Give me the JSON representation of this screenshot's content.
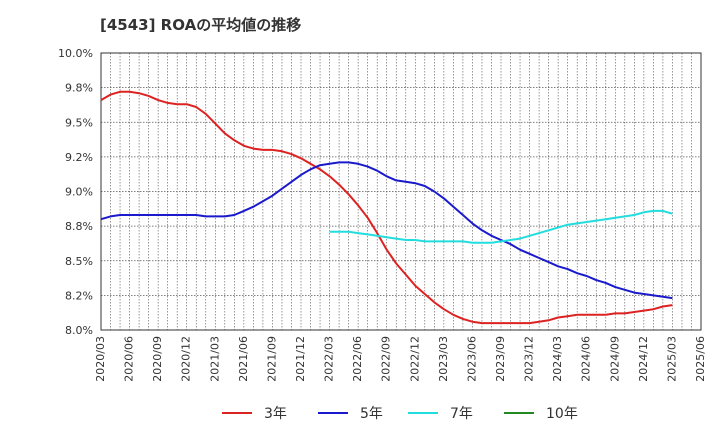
{
  "chart_data": {
    "type": "line",
    "title": "[4543]  ROAの平均値の推移",
    "xlabel": "",
    "ylabel": "",
    "ylim": [
      8.0,
      10.0
    ],
    "y_ticks": [
      "8.0%",
      "8.2%",
      "8.5%",
      "8.8%",
      "9.0%",
      "9.2%",
      "9.5%",
      "9.8%",
      "10.0%"
    ],
    "y_tick_values": [
      8.0,
      8.25,
      8.5,
      8.75,
      9.0,
      9.25,
      9.5,
      9.75,
      10.0
    ],
    "x_ticks": [
      "2020/03",
      "2020/06",
      "2020/09",
      "2020/12",
      "2021/03",
      "2021/06",
      "2021/09",
      "2021/12",
      "2022/03",
      "2022/06",
      "2022/09",
      "2022/12",
      "2023/03",
      "2023/06",
      "2023/09",
      "2023/12",
      "2024/03",
      "2024/06",
      "2024/09",
      "2024/12",
      "2025/03",
      "2025/06"
    ],
    "grid": true,
    "legend_position": "bottom",
    "series": [
      {
        "name": "3年",
        "color": "#dd2222",
        "x": [
          "2020/03",
          "2020/04",
          "2020/05",
          "2020/06",
          "2020/07",
          "2020/08",
          "2020/09",
          "2020/10",
          "2020/11",
          "2020/12",
          "2021/01",
          "2021/02",
          "2021/03",
          "2021/04",
          "2021/05",
          "2021/06",
          "2021/07",
          "2021/08",
          "2021/09",
          "2021/10",
          "2021/11",
          "2021/12",
          "2022/01",
          "2022/02",
          "2022/03",
          "2022/04",
          "2022/05",
          "2022/06",
          "2022/07",
          "2022/08",
          "2022/09",
          "2022/10",
          "2022/11",
          "2022/12",
          "2023/01",
          "2023/02",
          "2023/03",
          "2023/04",
          "2023/05",
          "2023/06",
          "2023/07",
          "2023/08",
          "2023/09",
          "2023/10",
          "2023/11",
          "2023/12",
          "2024/01",
          "2024/02",
          "2024/03",
          "2024/04",
          "2024/05",
          "2024/06",
          "2024/07",
          "2024/08",
          "2024/09",
          "2024/10",
          "2024/11",
          "2024/12",
          "2025/01",
          "2025/02",
          "2025/03"
        ],
        "values": [
          9.66,
          9.7,
          9.72,
          9.72,
          9.71,
          9.69,
          9.66,
          9.64,
          9.63,
          9.63,
          9.61,
          9.56,
          9.49,
          9.42,
          9.37,
          9.33,
          9.31,
          9.3,
          9.3,
          9.29,
          9.27,
          9.24,
          9.2,
          9.16,
          9.11,
          9.05,
          8.98,
          8.9,
          8.81,
          8.7,
          8.58,
          8.48,
          8.4,
          8.32,
          8.26,
          8.2,
          8.15,
          8.11,
          8.08,
          8.06,
          8.05,
          8.05,
          8.05,
          8.05,
          8.05,
          8.05,
          8.06,
          8.07,
          8.09,
          8.1,
          8.11,
          8.11,
          8.11,
          8.11,
          8.12,
          8.12,
          8.13,
          8.14,
          8.15,
          8.17,
          8.18
        ]
      },
      {
        "name": "5年",
        "color": "#1a1acc",
        "x": [
          "2020/03",
          "2020/04",
          "2020/05",
          "2020/06",
          "2020/07",
          "2020/08",
          "2020/09",
          "2020/10",
          "2020/11",
          "2020/12",
          "2021/01",
          "2021/02",
          "2021/03",
          "2021/04",
          "2021/05",
          "2021/06",
          "2021/07",
          "2021/08",
          "2021/09",
          "2021/10",
          "2021/11",
          "2021/12",
          "2022/01",
          "2022/02",
          "2022/03",
          "2022/04",
          "2022/05",
          "2022/06",
          "2022/07",
          "2022/08",
          "2022/09",
          "2022/10",
          "2022/11",
          "2022/12",
          "2023/01",
          "2023/02",
          "2023/03",
          "2023/04",
          "2023/05",
          "2023/06",
          "2023/07",
          "2023/08",
          "2023/09",
          "2023/10",
          "2023/11",
          "2023/12",
          "2024/01",
          "2024/02",
          "2024/03",
          "2024/04",
          "2024/05",
          "2024/06",
          "2024/07",
          "2024/08",
          "2024/09",
          "2024/10",
          "2024/11",
          "2024/12",
          "2025/01",
          "2025/02",
          "2025/03"
        ],
        "values": [
          8.8,
          8.82,
          8.83,
          8.83,
          8.83,
          8.83,
          8.83,
          8.83,
          8.83,
          8.83,
          8.83,
          8.82,
          8.82,
          8.82,
          8.83,
          8.86,
          8.89,
          8.93,
          8.97,
          9.02,
          9.07,
          9.12,
          9.16,
          9.19,
          9.2,
          9.21,
          9.21,
          9.2,
          9.18,
          9.15,
          9.11,
          9.08,
          9.07,
          9.06,
          9.04,
          9.0,
          8.95,
          8.89,
          8.83,
          8.77,
          8.72,
          8.68,
          8.65,
          8.62,
          8.58,
          8.55,
          8.52,
          8.49,
          8.46,
          8.44,
          8.41,
          8.39,
          8.36,
          8.34,
          8.31,
          8.29,
          8.27,
          8.26,
          8.25,
          8.24,
          8.23
        ]
      },
      {
        "name": "7年",
        "color": "#22dddd",
        "x": [
          "2022/03",
          "2022/04",
          "2022/05",
          "2022/06",
          "2022/07",
          "2022/08",
          "2022/09",
          "2022/10",
          "2022/11",
          "2022/12",
          "2023/01",
          "2023/02",
          "2023/03",
          "2023/04",
          "2023/05",
          "2023/06",
          "2023/07",
          "2023/08",
          "2023/09",
          "2023/10",
          "2023/11",
          "2023/12",
          "2024/01",
          "2024/02",
          "2024/03",
          "2024/04",
          "2024/05",
          "2024/06",
          "2024/07",
          "2024/08",
          "2024/09",
          "2024/10",
          "2024/11",
          "2024/12",
          "2025/01",
          "2025/02",
          "2025/03"
        ],
        "values": [
          8.71,
          8.71,
          8.71,
          8.7,
          8.69,
          8.68,
          8.67,
          8.66,
          8.65,
          8.65,
          8.64,
          8.64,
          8.64,
          8.64,
          8.64,
          8.63,
          8.63,
          8.63,
          8.64,
          8.65,
          8.66,
          8.68,
          8.7,
          8.72,
          8.74,
          8.76,
          8.77,
          8.78,
          8.79,
          8.8,
          8.81,
          8.82,
          8.83,
          8.85,
          8.86,
          8.86,
          8.84
        ]
      },
      {
        "name": "10年",
        "color": "#228822",
        "x": [],
        "values": []
      }
    ]
  }
}
